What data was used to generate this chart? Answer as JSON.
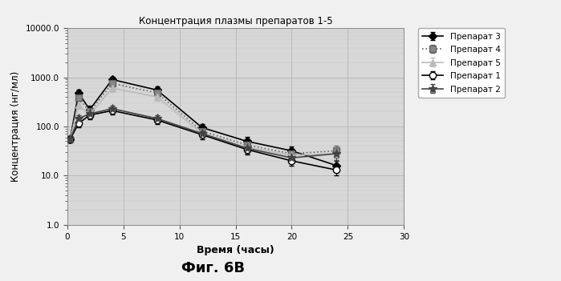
{
  "title": "Концентрация плазмы препаратов 1-5",
  "xlabel": "Время (часы)",
  "ylabel": "Концентрация (нг/мл)",
  "figure_caption": "Фиг. 6В",
  "xlim": [
    0,
    30
  ],
  "ylim": [
    1.0,
    10000.0
  ],
  "xticks": [
    0,
    5,
    10,
    15,
    20,
    25,
    30
  ],
  "ytick_vals": [
    1.0,
    10.0,
    100.0,
    1000.0,
    10000.0
  ],
  "ytick_labels": [
    "1.0",
    "10.0",
    "100.0",
    "1000.0",
    "10000.0"
  ],
  "fig_facecolor": "#f0f0f0",
  "plot_bg_color": "#d8d8d8",
  "series": [
    {
      "label": "Препарат 3",
      "color": "#000000",
      "linestyle": "-",
      "marker": "D",
      "markersize": 5,
      "markerfacecolor": "#000000",
      "linewidth": 1.2,
      "x": [
        0.25,
        1,
        2,
        4,
        8,
        12,
        16,
        20,
        24
      ],
      "y": [
        55,
        480,
        220,
        900,
        550,
        95,
        50,
        32,
        16
      ],
      "yerr": [
        8,
        70,
        40,
        130,
        90,
        18,
        12,
        7,
        4
      ]
    },
    {
      "label": "Препарат 4",
      "color": "#666666",
      "linestyle": ":",
      "marker": "s",
      "markersize": 6,
      "markerfacecolor": "#888888",
      "linewidth": 1.2,
      "x": [
        0.25,
        1,
        2,
        4,
        8,
        12,
        16,
        20,
        24
      ],
      "y": [
        55,
        380,
        200,
        750,
        480,
        80,
        42,
        28,
        32
      ],
      "yerr": [
        8,
        55,
        35,
        110,
        75,
        16,
        10,
        6,
        9
      ]
    },
    {
      "label": "Препарат 5",
      "color": "#bbbbbb",
      "linestyle": "-",
      "marker": "^",
      "markersize": 6,
      "markerfacecolor": "#bbbbbb",
      "linewidth": 1.2,
      "x": [
        0.25,
        1,
        2,
        4,
        8,
        12,
        16,
        20,
        24
      ],
      "y": [
        55,
        270,
        175,
        600,
        400,
        72,
        38,
        26,
        28
      ],
      "yerr": [
        8,
        45,
        30,
        95,
        65,
        14,
        9,
        5,
        7
      ]
    },
    {
      "label": "Препарат 1",
      "color": "#000000",
      "linestyle": "-",
      "marker": "o",
      "markersize": 6,
      "markerfacecolor": "#ffffff",
      "linewidth": 1.2,
      "x": [
        0.25,
        1,
        2,
        4,
        8,
        12,
        16,
        20,
        24
      ],
      "y": [
        55,
        115,
        170,
        210,
        135,
        68,
        34,
        20,
        13
      ],
      "yerr": [
        8,
        18,
        28,
        32,
        22,
        13,
        7,
        4,
        3
      ]
    },
    {
      "label": "Препарат 2",
      "color": "#444444",
      "linestyle": "-",
      "marker": "*",
      "markersize": 8,
      "markerfacecolor": "#444444",
      "linewidth": 1.2,
      "x": [
        0.25,
        1,
        2,
        4,
        8,
        12,
        16,
        20,
        24
      ],
      "y": [
        55,
        145,
        180,
        230,
        145,
        72,
        36,
        23,
        28
      ],
      "yerr": [
        8,
        22,
        30,
        35,
        25,
        14,
        8,
        5,
        7
      ]
    }
  ]
}
